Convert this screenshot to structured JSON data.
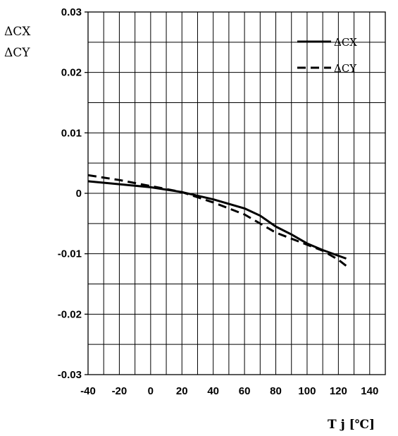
{
  "chart_data": {
    "type": "line",
    "ylabel_lines": [
      "ΔCX",
      "ΔCY"
    ],
    "xlabel": "T j [℃]",
    "xlim": [
      -40,
      150
    ],
    "ylim": [
      -0.03,
      0.03
    ],
    "x_ticks": [
      -40,
      -20,
      0,
      20,
      40,
      60,
      80,
      100,
      120,
      140
    ],
    "x_tick_labels": [
      "-40",
      "-20",
      "0",
      "20",
      "40",
      "60",
      "80",
      "100",
      "120",
      "140"
    ],
    "y_ticks": [
      0.03,
      0.02,
      0.01,
      0,
      -0.01,
      -0.02,
      -0.03
    ],
    "y_tick_labels": [
      "0.03",
      "0.02",
      "0.01",
      "0",
      "-0.01",
      "-0.02",
      "-0.03"
    ],
    "x_minor_step": 10,
    "y_minor_step": 0.005,
    "grid": true,
    "legend_position": "top-right",
    "series": [
      {
        "name": "ΔCX",
        "style": "solid",
        "color": "#000000",
        "x": [
          -40,
          -20,
          0,
          20,
          40,
          60,
          70,
          80,
          90,
          100,
          110,
          125
        ],
        "y": [
          0.002,
          0.0015,
          0.001,
          0.0002,
          -0.001,
          -0.0025,
          -0.0037,
          -0.0055,
          -0.0068,
          -0.0083,
          -0.0094,
          -0.0108
        ]
      },
      {
        "name": "ΔCY",
        "style": "dashed",
        "color": "#000000",
        "x": [
          -40,
          -20,
          0,
          20,
          40,
          60,
          80,
          100,
          110,
          120,
          125
        ],
        "y": [
          0.003,
          0.0022,
          0.0012,
          0.0002,
          -0.0015,
          -0.0035,
          -0.0065,
          -0.0085,
          -0.0095,
          -0.011,
          -0.012
        ]
      }
    ]
  }
}
